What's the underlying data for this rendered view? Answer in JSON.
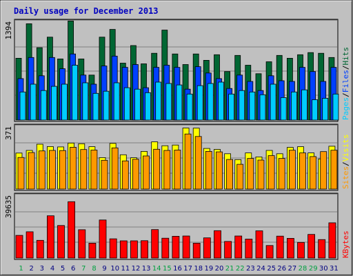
{
  "title": "Daily usage for December 2013",
  "colors": {
    "background": "#C0C0C0",
    "title": "#0000C0",
    "hits": "#006633",
    "files": "#0040FF",
    "pages": "#00CCFF",
    "visits": "#FFFF00",
    "sites": "#FF9900",
    "kbytes": "#FF0000",
    "weekday_label": "#00A040",
    "day_label": "#000080",
    "grid": "#808080"
  },
  "labels": {
    "pages": "Pages",
    "files": "Files",
    "hits": "Hits",
    "visits": "Visits",
    "sites": "Sites",
    "kbytes": "KBytes",
    "sep": "/"
  },
  "chart_data": {
    "type": "bar",
    "title": "Daily usage for December 2013",
    "categories": [
      "1",
      "2",
      "3",
      "4",
      "5",
      "6",
      "7",
      "8",
      "9",
      "10",
      "11",
      "12",
      "13",
      "14",
      "15",
      "16",
      "17",
      "18",
      "19",
      "20",
      "21",
      "22",
      "23",
      "24",
      "25",
      "26",
      "27",
      "28",
      "29",
      "30",
      "31"
    ],
    "green_days": [
      1,
      7,
      8,
      14,
      15,
      21,
      22,
      28,
      29
    ],
    "panels": [
      {
        "name": "hits_files_pages",
        "max_label": "1394",
        "ymax": 1394,
        "grid": true,
        "series": [
          {
            "name": "Hits",
            "values": [
              880,
              1370,
              1030,
              1180,
              870,
              1410,
              870,
              640,
              1180,
              1290,
              810,
              1060,
              800,
              950,
              1280,
              940,
              790,
              940,
              850,
              930,
              690,
              920,
              780,
              660,
              830,
              920,
              880,
              930,
              960,
              950,
              890
            ]
          },
          {
            "name": "Files",
            "values": [
              590,
              890,
              630,
              890,
              730,
              940,
              640,
              510,
              770,
              910,
              750,
              790,
              460,
              750,
              780,
              750,
              440,
              760,
              670,
              590,
              450,
              640,
              550,
              420,
              630,
              560,
              550,
              750,
              690,
              550,
              750
            ]
          },
          {
            "name": "Pages",
            "values": [
              400,
              510,
              420,
              480,
              510,
              780,
              530,
              380,
              410,
              530,
              460,
              440,
              390,
              540,
              520,
              500,
              370,
              490,
              520,
              540,
              370,
              420,
              400,
              360,
              510,
              320,
              400,
              430,
              290,
              310,
              370
            ]
          }
        ]
      },
      {
        "name": "visits_sites",
        "max_label": "371",
        "ymax": 371,
        "grid": true,
        "series": [
          {
            "name": "Visits",
            "values": [
              215,
              231,
              268,
              254,
              252,
              275,
              271,
              253,
              188,
              273,
              205,
              187,
              225,
              282,
              259,
              263,
              365,
              364,
              243,
              237,
              211,
              176,
              216,
              192,
              231,
              211,
              249,
              253,
              216,
              180,
              256
            ]
          },
          {
            "name": "Sites",
            "values": [
              189,
              218,
              228,
              231,
              230,
              250,
              236,
              233,
              172,
              246,
              168,
              178,
              198,
              238,
              231,
              233,
              329,
              314,
              225,
              222,
              177,
              148,
              183,
              173,
              200,
              183,
              232,
              216,
              194,
              224,
              232
            ]
          }
        ]
      },
      {
        "name": "kbytes",
        "max_label": "39635",
        "ymax": 39635,
        "grid": true,
        "series": [
          {
            "name": "KBytes",
            "values": [
              14500,
              16800,
              11300,
              27000,
              20800,
              36000,
              18100,
              9500,
              24300,
              12300,
              11000,
              11000,
              11100,
              18200,
              12700,
              13900,
              14100,
              9500,
              12900,
              17500,
              10600,
              14100,
              12100,
              17400,
              8000,
              14000,
              12600,
              10000,
              15100,
              11800,
              22500
            ]
          }
        ]
      }
    ]
  }
}
